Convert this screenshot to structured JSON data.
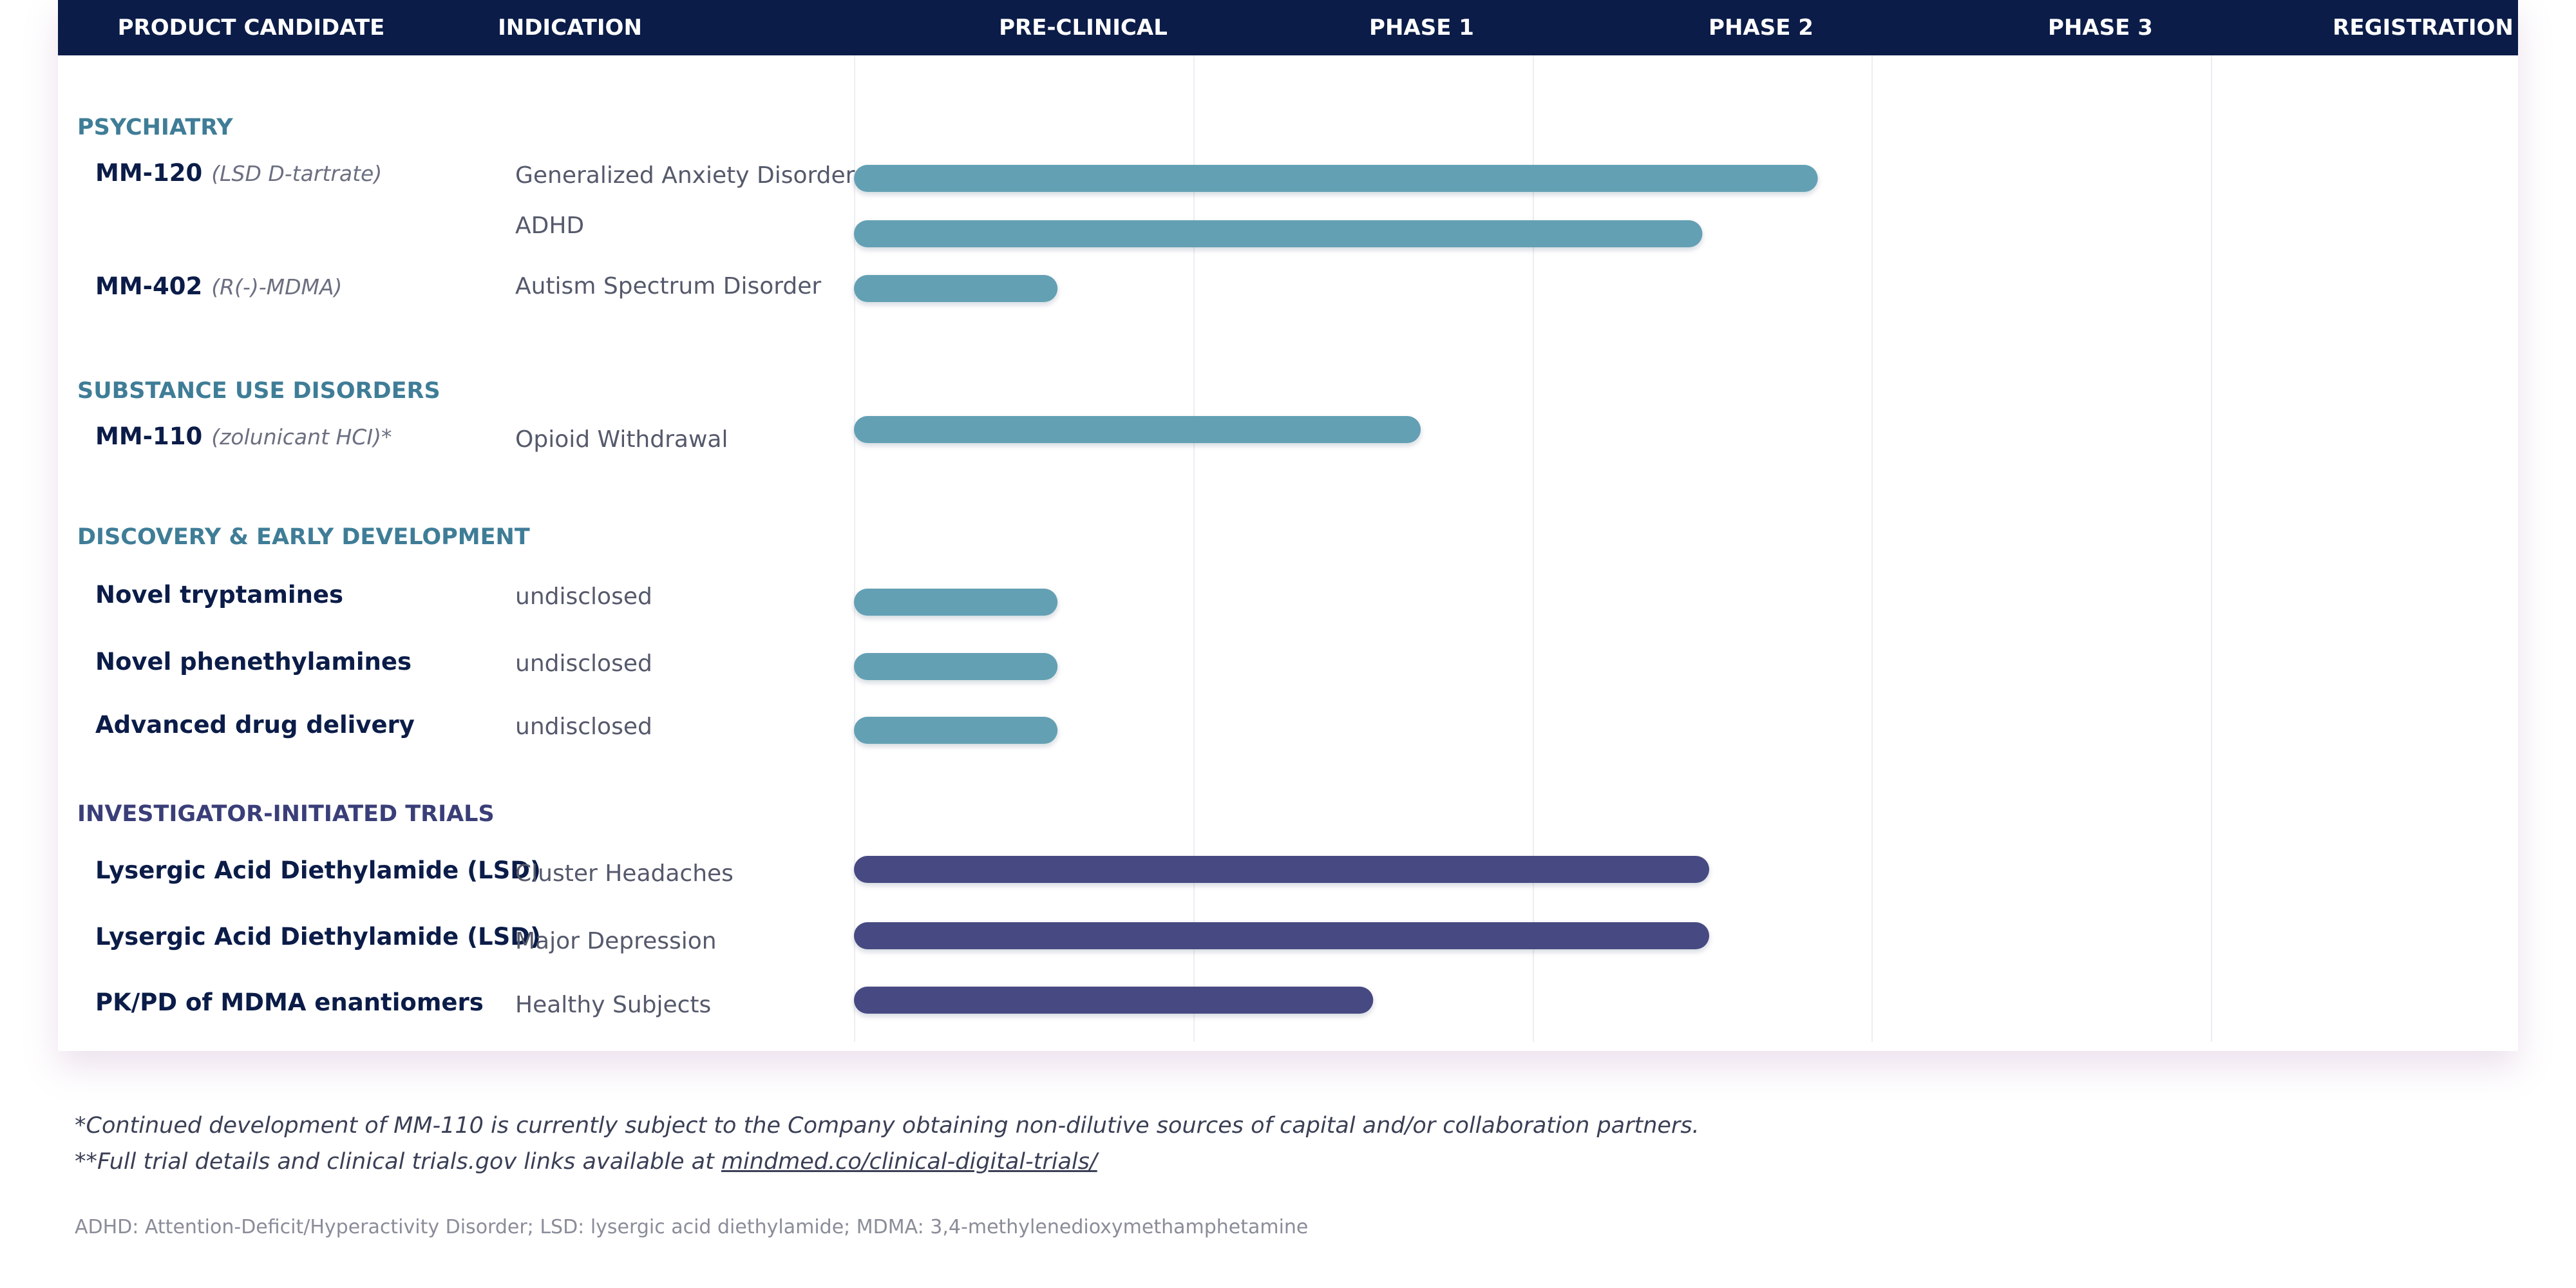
{
  "chart_data": {
    "type": "bar",
    "orientation": "horizontal",
    "stages": [
      "PRODUCT CANDIDATE",
      "INDICATION",
      "PRE-CLINICAL",
      "PHASE 1",
      "PHASE 2",
      "PHASE 3",
      "REGISTRATION"
    ],
    "x_scale": "stage progress (0 = start of Pre-Clinical, 5 = end of Registration)",
    "xlim": [
      0,
      5
    ],
    "colors": {
      "company_program": "#64a0b4",
      "investigator_trial": "#464a82",
      "category_company": "#3f7d97",
      "category_investigator": "#3a3e78"
    },
    "groups": [
      {
        "category": "PSYCHIATRY",
        "rows": [
          {
            "candidate": "MM-120",
            "detail": "(LSD D-tartrate)",
            "indication": "Generalized Anxiety Disorder",
            "progress": 2.84,
            "series": "company_program"
          },
          {
            "candidate": "",
            "detail": "",
            "indication": "ADHD",
            "progress": 2.5,
            "series": "company_program"
          },
          {
            "candidate": "MM-402",
            "detail": "(R(-)-MDMA)",
            "indication": "Autism Spectrum Disorder",
            "progress": 0.6,
            "series": "company_program"
          }
        ]
      },
      {
        "category": "SUBSTANCE USE DISORDERS",
        "rows": [
          {
            "candidate": "MM-110",
            "detail": "(zolunicant HCI)*",
            "indication": "Opioid Withdrawal",
            "progress": 1.67,
            "series": "company_program"
          }
        ]
      },
      {
        "category": "DISCOVERY & EARLY DEVELOPMENT",
        "rows": [
          {
            "candidate": "Novel tryptamines",
            "detail": "",
            "indication": "undisclosed",
            "progress": 0.6,
            "series": "company_program"
          },
          {
            "candidate": "Novel phenethylamines",
            "detail": "",
            "indication": "undisclosed",
            "progress": 0.6,
            "series": "company_program"
          },
          {
            "candidate": "Advanced drug delivery",
            "detail": "",
            "indication": "undisclosed",
            "progress": 0.6,
            "series": "company_program"
          }
        ]
      },
      {
        "category": "INVESTIGATOR-INITIATED TRIALS",
        "rows": [
          {
            "candidate": "Lysergic Acid Diethylamide (LSD)",
            "detail": "",
            "indication": "Cluster Headaches",
            "progress": 2.52,
            "series": "investigator_trial"
          },
          {
            "candidate": "Lysergic Acid Diethylamide (LSD)",
            "detail": "",
            "indication": "Major Depression",
            "progress": 2.52,
            "series": "investigator_trial"
          },
          {
            "candidate": "PK/PD of MDMA enantiomers",
            "detail": "",
            "indication": "Healthy Subjects",
            "progress": 1.53,
            "series": "investigator_trial"
          }
        ]
      }
    ]
  },
  "footnotes": {
    "note1": "*Continued development of MM-110 is currently subject to the Company obtaining non-dilutive sources of capital and/or collaboration partners.",
    "note2_prefix": "**Full trial details and clinical trials.gov links available at ",
    "note2_link": "mindmed.co/clinical-digital-trials/",
    "abbreviations": "ADHD: Attention-Deficit/Hyperactivity Disorder; LSD: lysergic acid diethylamide; MDMA: 3,4-methylenedioxymethamphetamine"
  }
}
